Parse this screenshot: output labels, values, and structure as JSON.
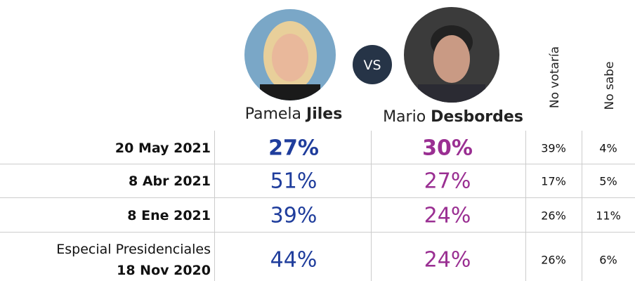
{
  "header": {
    "candidates": [
      {
        "first": "Pamela",
        "last": "Jiles"
      },
      {
        "first": "Mario",
        "last": "Desbordes"
      }
    ],
    "versus": "VS",
    "columns": [
      "No votaría",
      "No sabe"
    ]
  },
  "table": {
    "rows": [
      {
        "label": [
          "20 May 2021"
        ],
        "cells": [
          "27%",
          "30%",
          "39%",
          "4%"
        ]
      },
      {
        "label": [
          "8 Abr 2021"
        ],
        "cells": [
          "51%",
          "27%",
          "17%",
          "5%"
        ]
      },
      {
        "label": [
          "8 Ene 2021"
        ],
        "cells": [
          "39%",
          "24%",
          "26%",
          "11%"
        ]
      },
      {
        "label": [
          "Especial Presidenciales",
          "18 Nov 2020"
        ],
        "cells": [
          "44%",
          "24%",
          "26%",
          "6%"
        ]
      }
    ]
  }
}
